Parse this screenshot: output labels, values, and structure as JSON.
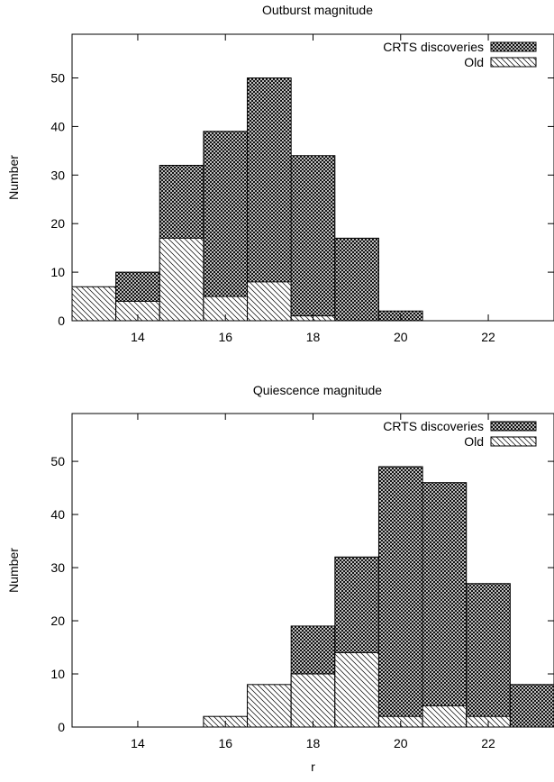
{
  "chart_data": [
    {
      "type": "bar",
      "stacked": true,
      "title": "Outburst magnitude",
      "xlabel": "",
      "ylabel": "Number",
      "xlim": [
        12.5,
        23.5
      ],
      "ylim": [
        0,
        59
      ],
      "xticks": [
        "14",
        "16",
        "18",
        "20",
        "22"
      ],
      "yticks": [
        "0",
        "10",
        "20",
        "30",
        "40",
        "50"
      ],
      "bin_centers": [
        13,
        14,
        15,
        16,
        17,
        18,
        19,
        20
      ],
      "series": [
        {
          "name": "Old",
          "values": [
            7,
            4,
            17,
            5,
            8,
            1,
            0,
            0
          ]
        },
        {
          "name": "CRTS discoveries",
          "values": [
            0,
            10,
            32,
            39,
            50,
            34,
            17,
            2
          ]
        }
      ],
      "legend": [
        "CRTS discoveries",
        "Old"
      ],
      "legend_position": "top-right"
    },
    {
      "type": "bar",
      "stacked": true,
      "title": "Quiescence magnitude",
      "xlabel": "r",
      "ylabel": "Number",
      "xlim": [
        12.5,
        23.5
      ],
      "ylim": [
        0,
        59
      ],
      "xticks": [
        "14",
        "16",
        "18",
        "20",
        "22"
      ],
      "yticks": [
        "0",
        "10",
        "20",
        "30",
        "40",
        "50"
      ],
      "bin_centers": [
        16,
        17,
        18,
        19,
        20,
        21,
        22,
        23
      ],
      "series": [
        {
          "name": "Old",
          "values": [
            2,
            8,
            10,
            14,
            2,
            4,
            2,
            0
          ]
        },
        {
          "name": "CRTS discoveries",
          "values": [
            0,
            0,
            19,
            32,
            49,
            46,
            27,
            8
          ]
        }
      ],
      "legend": [
        "CRTS discoveries",
        "Old"
      ],
      "legend_position": "top-right"
    }
  ]
}
